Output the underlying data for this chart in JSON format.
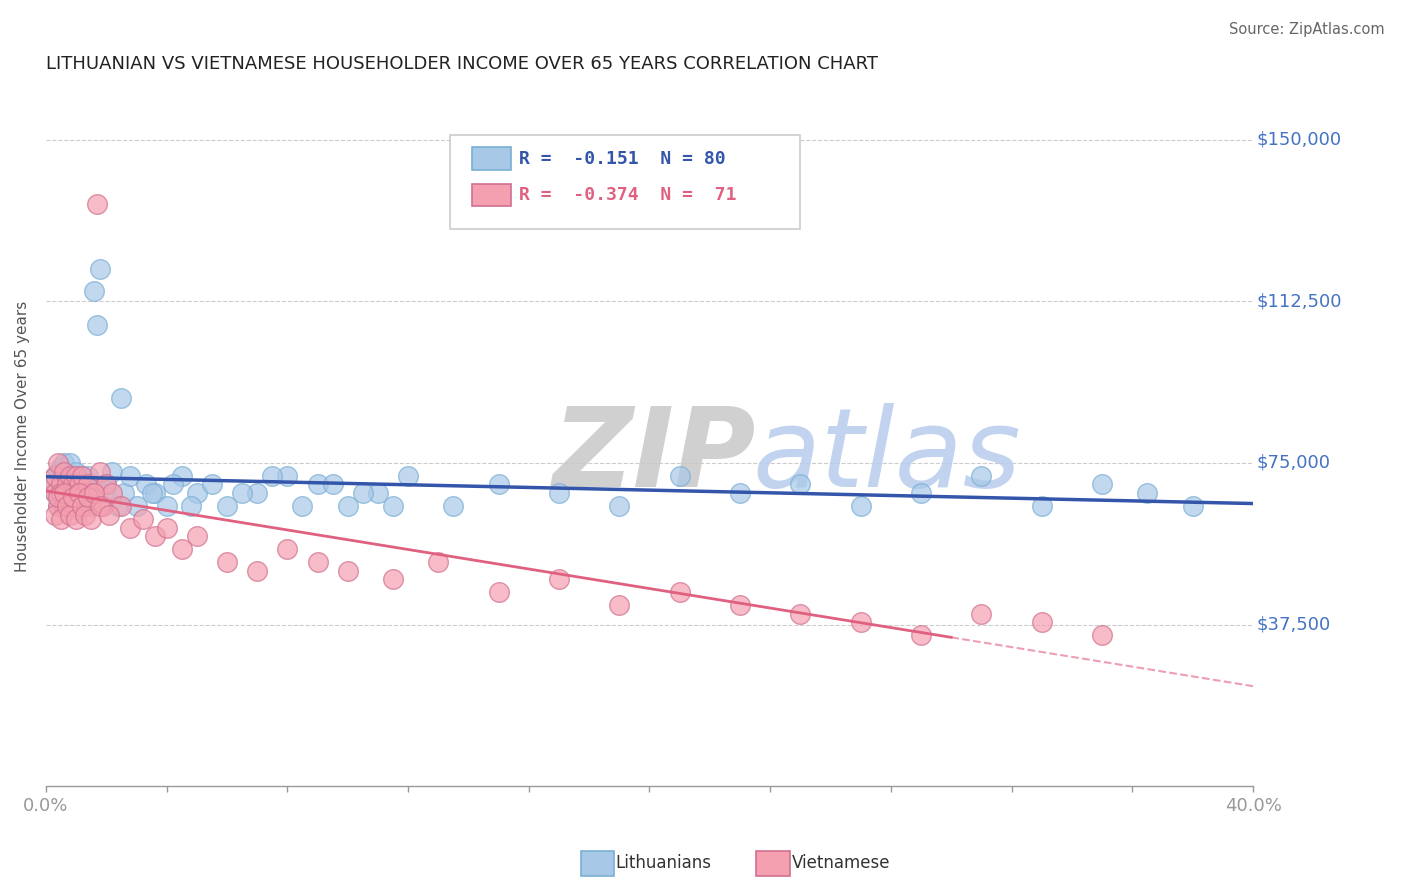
{
  "title": "LITHUANIAN VS VIETNAMESE HOUSEHOLDER INCOME OVER 65 YEARS CORRELATION CHART",
  "source": "Source: ZipAtlas.com",
  "ylabel": "Householder Income Over 65 years",
  "xlim": [
    0.0,
    0.4
  ],
  "ylim": [
    0,
    162500
  ],
  "yticks": [
    0,
    37500,
    75000,
    112500,
    150000
  ],
  "ytick_labels": [
    "",
    "$37,500",
    "$75,000",
    "$112,500",
    "$150,000"
  ],
  "xticks": [
    0.0,
    0.04,
    0.08,
    0.12,
    0.16,
    0.2,
    0.24,
    0.28,
    0.32,
    0.36,
    0.4
  ],
  "xtick_labels": [
    "0.0%",
    "",
    "",
    "",
    "",
    "",
    "",
    "",
    "",
    "",
    "40.0%"
  ],
  "background_color": "#ffffff",
  "grid_color": "#cccccc",
  "right_label_color": "#4472c4",
  "lithuanian_color": "#a8c8e8",
  "vietnamese_color": "#f4a0b0",
  "lithuanian_line_color": "#3355aa",
  "vietnamese_line_color": "#e06080",
  "legend_R_lith": "-0.151",
  "legend_N_lith": "80",
  "legend_R_viet": "-0.374",
  "legend_N_viet": "71",
  "lith_scatter_x": [
    0.002,
    0.003,
    0.003,
    0.004,
    0.004,
    0.004,
    0.005,
    0.005,
    0.005,
    0.006,
    0.006,
    0.006,
    0.007,
    0.007,
    0.007,
    0.008,
    0.008,
    0.008,
    0.009,
    0.009,
    0.009,
    0.01,
    0.01,
    0.01,
    0.011,
    0.011,
    0.012,
    0.012,
    0.013,
    0.013,
    0.014,
    0.014,
    0.015,
    0.016,
    0.017,
    0.018,
    0.019,
    0.02,
    0.022,
    0.024,
    0.026,
    0.028,
    0.03,
    0.033,
    0.036,
    0.04,
    0.045,
    0.05,
    0.055,
    0.06,
    0.07,
    0.08,
    0.09,
    0.1,
    0.11,
    0.12,
    0.135,
    0.15,
    0.17,
    0.19,
    0.21,
    0.23,
    0.25,
    0.27,
    0.29,
    0.31,
    0.33,
    0.35,
    0.365,
    0.38,
    0.025,
    0.035,
    0.042,
    0.048,
    0.065,
    0.075,
    0.085,
    0.095,
    0.105,
    0.115
  ],
  "lith_scatter_y": [
    70000,
    68000,
    72000,
    65000,
    73000,
    69000,
    71000,
    67000,
    74000,
    70000,
    65000,
    75000,
    68000,
    72000,
    64000,
    70000,
    67000,
    75000,
    69000,
    65000,
    72000,
    68000,
    73000,
    66000,
    70000,
    64000,
    72000,
    68000,
    70000,
    65000,
    68000,
    72000,
    70000,
    115000,
    107000,
    120000,
    68000,
    70000,
    73000,
    65000,
    68000,
    72000,
    65000,
    70000,
    68000,
    65000,
    72000,
    68000,
    70000,
    65000,
    68000,
    72000,
    70000,
    65000,
    68000,
    72000,
    65000,
    70000,
    68000,
    65000,
    72000,
    68000,
    70000,
    65000,
    68000,
    72000,
    65000,
    70000,
    68000,
    65000,
    90000,
    68000,
    70000,
    65000,
    68000,
    72000,
    65000,
    70000,
    68000,
    65000
  ],
  "viet_scatter_x": [
    0.002,
    0.003,
    0.003,
    0.004,
    0.004,
    0.005,
    0.005,
    0.006,
    0.006,
    0.007,
    0.007,
    0.008,
    0.008,
    0.009,
    0.009,
    0.01,
    0.01,
    0.011,
    0.011,
    0.012,
    0.012,
    0.013,
    0.014,
    0.015,
    0.016,
    0.017,
    0.018,
    0.019,
    0.02,
    0.022,
    0.025,
    0.028,
    0.032,
    0.036,
    0.04,
    0.045,
    0.05,
    0.06,
    0.07,
    0.08,
    0.09,
    0.1,
    0.115,
    0.13,
    0.15,
    0.17,
    0.19,
    0.21,
    0.23,
    0.25,
    0.27,
    0.29,
    0.31,
    0.33,
    0.35,
    0.003,
    0.004,
    0.005,
    0.006,
    0.007,
    0.008,
    0.009,
    0.01,
    0.011,
    0.012,
    0.013,
    0.014,
    0.015,
    0.016,
    0.018,
    0.021
  ],
  "viet_scatter_y": [
    70000,
    68000,
    72000,
    65000,
    75000,
    70000,
    68000,
    65000,
    73000,
    70000,
    68000,
    72000,
    65000,
    70000,
    68000,
    65000,
    72000,
    70000,
    68000,
    65000,
    72000,
    68000,
    70000,
    65000,
    68000,
    135000,
    73000,
    65000,
    70000,
    68000,
    65000,
    60000,
    62000,
    58000,
    60000,
    55000,
    58000,
    52000,
    50000,
    55000,
    52000,
    50000,
    48000,
    52000,
    45000,
    48000,
    42000,
    45000,
    42000,
    40000,
    38000,
    35000,
    40000,
    38000,
    35000,
    63000,
    67000,
    62000,
    68000,
    65000,
    63000,
    67000,
    62000,
    68000,
    65000,
    63000,
    67000,
    62000,
    68000,
    65000,
    63000
  ]
}
